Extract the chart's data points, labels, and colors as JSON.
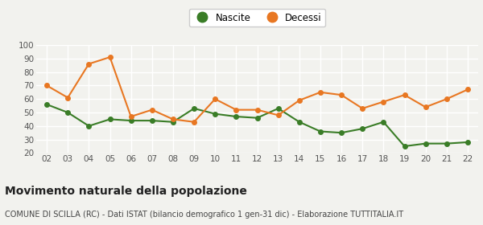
{
  "years": [
    "02",
    "03",
    "04",
    "05",
    "06",
    "07",
    "08",
    "09",
    "10",
    "11",
    "12",
    "13",
    "14",
    "15",
    "16",
    "17",
    "18",
    "19",
    "20",
    "21",
    "22"
  ],
  "nascite": [
    56,
    50,
    40,
    45,
    44,
    44,
    43,
    53,
    49,
    47,
    46,
    53,
    43,
    36,
    35,
    38,
    43,
    25,
    27,
    27,
    28
  ],
  "decessi": [
    70,
    61,
    86,
    91,
    47,
    52,
    45,
    43,
    60,
    52,
    52,
    48,
    59,
    65,
    63,
    53,
    58,
    63,
    54,
    60,
    67
  ],
  "nascite_color": "#3a7d27",
  "decessi_color": "#e87722",
  "background_color": "#f2f2ee",
  "grid_color": "#ffffff",
  "ylim": [
    20,
    100
  ],
  "yticks": [
    20,
    30,
    40,
    50,
    60,
    70,
    80,
    90,
    100
  ],
  "title": "Movimento naturale della popolazione",
  "subtitle": "COMUNE DI SCILLA (RC) - Dati ISTAT (bilancio demografico 1 gen-31 dic) - Elaborazione TUTTITALIA.IT",
  "legend_nascite": "Nascite",
  "legend_decessi": "Decessi",
  "title_fontsize": 10,
  "subtitle_fontsize": 7,
  "tick_fontsize": 7.5,
  "legend_fontsize": 8.5,
  "marker_size": 4,
  "line_width": 1.5
}
